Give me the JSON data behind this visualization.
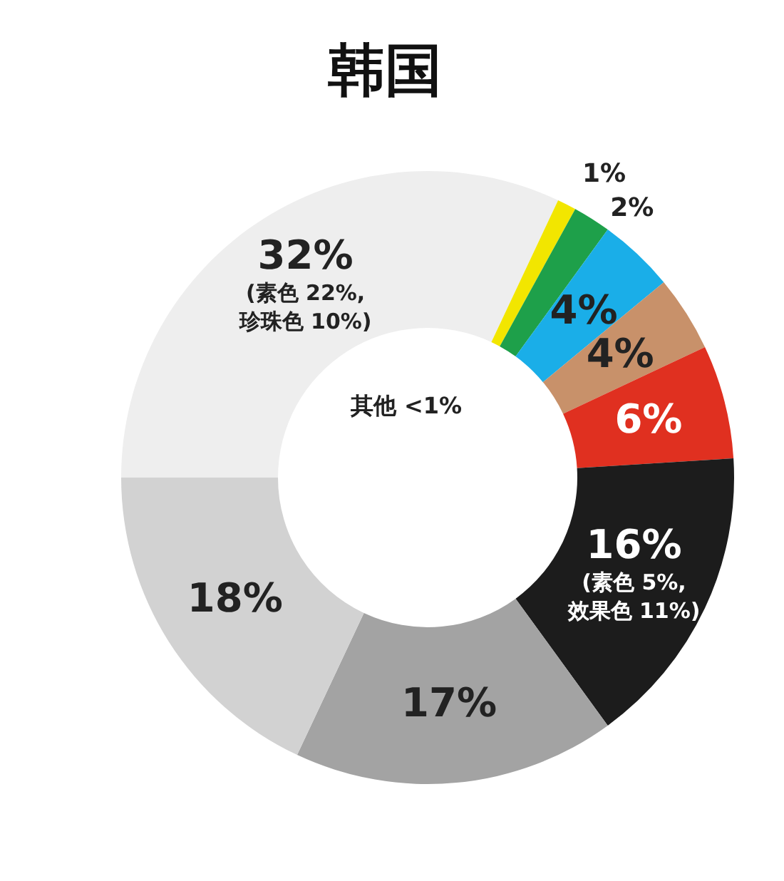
{
  "chart_data": {
    "type": "donut",
    "title": "韩国",
    "categories": [
      null,
      null,
      null,
      null,
      null,
      null,
      null,
      null,
      null
    ],
    "values": [
      32,
      1,
      2,
      4,
      4,
      6,
      16,
      17,
      18
    ],
    "colors": [
      "#eeeeee",
      "#f2e600",
      "#1ea04a",
      "#1aaee8",
      "#c8916a",
      "#e03020",
      "#1c1c1c",
      "#a3a3a3",
      "#d2d2d2"
    ],
    "value_labels": [
      "32%\n(素色 22%,\n珍珠色 10%)",
      "1%",
      "2%",
      "4%",
      "4%",
      "6%",
      "16%\n(素色 5%,\n效果色 11%)",
      "17%",
      "18%"
    ],
    "annotations": [
      "其他 <1%"
    ]
  }
}
